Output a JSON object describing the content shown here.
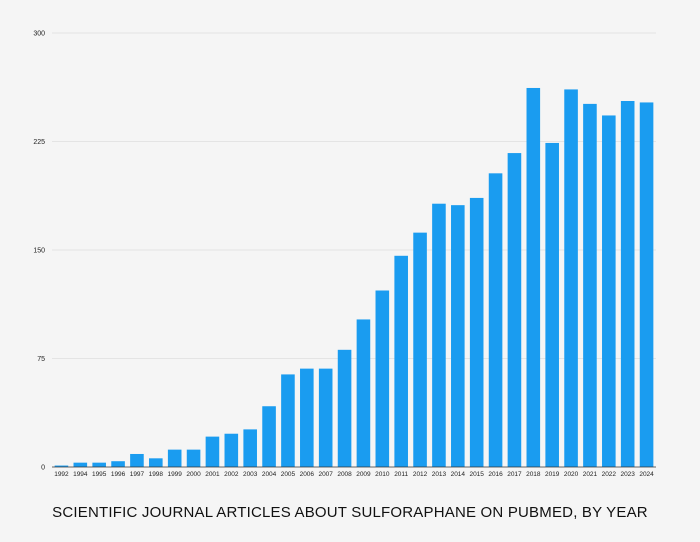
{
  "chart_data": {
    "type": "bar",
    "title": "SCIENTIFIC JOURNAL ARTICLES ABOUT SULFORAPHANE ON PUBMED, BY YEAR",
    "xlabel": "",
    "ylabel": "",
    "ylim": [
      0,
      300
    ],
    "yticks": [
      0,
      75,
      150,
      225,
      300
    ],
    "grid": true,
    "legend": "none",
    "bar_color": "#1a9cf0",
    "categories": [
      "1992",
      "1994",
      "1995",
      "1996",
      "1997",
      "1998",
      "1999",
      "2000",
      "2001",
      "2002",
      "2003",
      "2004",
      "2005",
      "2006",
      "2007",
      "2008",
      "2009",
      "2010",
      "2011",
      "2012",
      "2013",
      "2014",
      "2015",
      "2016",
      "2017",
      "2018",
      "2019",
      "2020",
      "2021",
      "2022",
      "2023",
      "2024"
    ],
    "values": [
      1,
      3,
      3,
      4,
      9,
      6,
      12,
      12,
      21,
      23,
      26,
      42,
      64,
      68,
      68,
      81,
      102,
      122,
      146,
      162,
      182,
      181,
      186,
      203,
      217,
      262,
      224,
      261,
      251,
      243,
      253,
      252
    ]
  }
}
